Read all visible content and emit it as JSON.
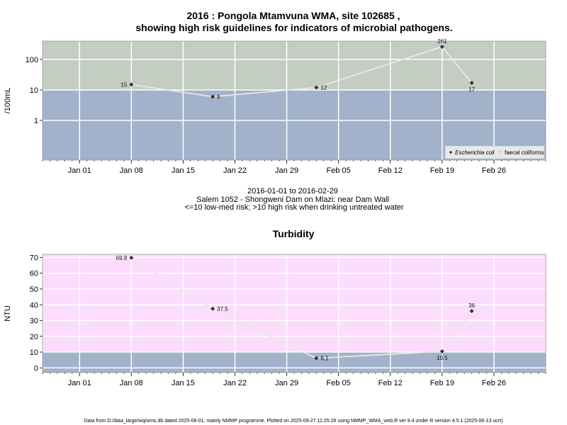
{
  "chart_data": [
    {
      "type": "line",
      "title_line1": "2016 : Pongola Mtamvuna WMA, site 102685 ,",
      "title_line2": "showing high risk guidelines for indicators of microbial pathogens.",
      "ylabel": "/100mL",
      "yscale": "log",
      "ylim": [
        0.05,
        400
      ],
      "yticks": [
        1,
        10,
        100
      ],
      "ytick_labels": [
        "1",
        "10",
        "100"
      ],
      "xlim": [
        "2015-12-27",
        "2016-03-04"
      ],
      "xticks": [
        "2016-01-01",
        "2016-01-08",
        "2016-01-15",
        "2016-01-22",
        "2016-01-29",
        "2016-02-05",
        "2016-02-12",
        "2016-02-19",
        "2016-02-26"
      ],
      "xtick_labels": [
        "Jan 01",
        "Jan 08",
        "Jan 15",
        "Jan 22",
        "Jan 29",
        "Feb 05",
        "Feb 12",
        "Feb 19",
        "Feb 26"
      ],
      "grid": true,
      "bands": [
        {
          "from": 10,
          "to": 400,
          "color": "#c3cdc2"
        },
        {
          "from": 0.05,
          "to": 10,
          "color": "#a2b2cb"
        }
      ],
      "series": [
        {
          "name": "Escherichia coli",
          "marker": "diamond",
          "x": [
            "2016-01-08",
            "2016-01-19",
            "2016-02-02",
            "2016-02-19",
            "2016-02-23"
          ],
          "y": [
            15,
            6,
            12,
            261,
            17
          ],
          "labels": [
            "15",
            "6",
            "12",
            "261",
            "17"
          ]
        }
      ],
      "legend": {
        "position": "bottom-right",
        "entries": [
          "Escherichia coli",
          "faecal coliforms"
        ]
      }
    },
    {
      "type": "line",
      "title": "Turbidity",
      "ylabel": "NTU",
      "ylim": [
        -3,
        72
      ],
      "yticks": [
        0,
        10,
        20,
        30,
        40,
        50,
        60,
        70
      ],
      "ytick_labels": [
        "0",
        "10",
        "20",
        "30",
        "40",
        "50",
        "60",
        "70"
      ],
      "xlim": [
        "2015-12-27",
        "2016-03-04"
      ],
      "xticks": [
        "2016-01-01",
        "2016-01-08",
        "2016-01-15",
        "2016-01-22",
        "2016-01-29",
        "2016-02-05",
        "2016-02-12",
        "2016-02-19",
        "2016-02-26"
      ],
      "xtick_labels": [
        "Jan 01",
        "Jan 08",
        "Jan 15",
        "Jan 22",
        "Jan 29",
        "Feb 05",
        "Feb 12",
        "Feb 19",
        "Feb 26"
      ],
      "grid": true,
      "bands": [
        {
          "from": 10,
          "to": 72,
          "color": "#fcdcfc"
        },
        {
          "from": -3,
          "to": 10,
          "color": "#a2b2cb"
        }
      ],
      "series": [
        {
          "marker": "diamond",
          "x": [
            "2016-01-08",
            "2016-01-19",
            "2016-02-02",
            "2016-02-19",
            "2016-02-23"
          ],
          "y": [
            69.8,
            37.5,
            6.1,
            10.5,
            36
          ],
          "labels": [
            "69.8",
            "37.5",
            "6.1",
            "10.5",
            "36"
          ]
        }
      ]
    }
  ],
  "period": "2016-01-01 to 2016-02-29",
  "site_description": "Salem 1052 - Shongweni Dam on Mlazi: near Dam Wall",
  "risk_note": "<=10 low-med risk; >10 high risk when drinking untreated water",
  "footer": "Data from D:/data_large/wq/wms.db dated 2025-08-01, mainly NMMP programme. Plotted on 2025-09-27 11:25:26 using NMMP_WMA_web.R ver 9.4 under R version 4.5.1 (2025-06-13 ucrt)",
  "colors": {
    "line": "#e8e8e8",
    "marker": "#333333",
    "grid": "#ffffff",
    "frame": "#999999"
  }
}
